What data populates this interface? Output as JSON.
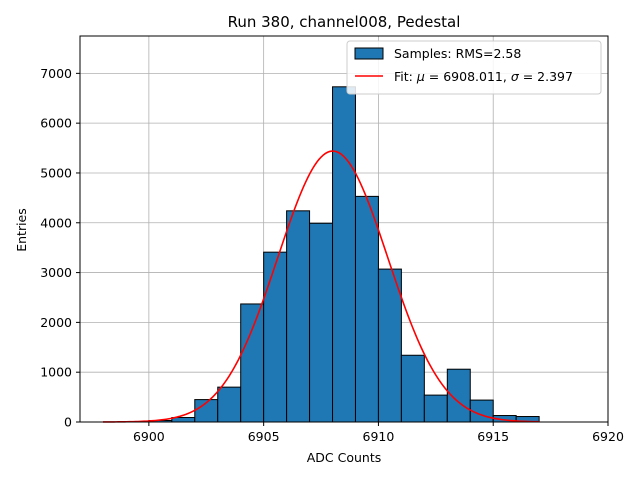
{
  "chart_data": {
    "type": "bar",
    "title": "Run 380, channel008, Pedestal",
    "xlabel": "ADC Counts",
    "ylabel": "Entries",
    "xlim": [
      6897,
      6920
    ],
    "ylim": [
      0,
      7750
    ],
    "xticks": [
      6900,
      6905,
      6910,
      6915,
      6920
    ],
    "yticks": [
      0,
      1000,
      2000,
      3000,
      4000,
      5000,
      6000,
      7000
    ],
    "grid": true,
    "legend_position": "top-right",
    "histogram": {
      "name": "Samples: RMS=2.58",
      "color": "#1f77b4",
      "edge_color": "#000000",
      "bin_edges": [
        6900,
        6901,
        6902,
        6903,
        6904,
        6905,
        6906,
        6907,
        6908,
        6909,
        6910,
        6911,
        6912,
        6913,
        6914,
        6915,
        6916,
        6917
      ],
      "counts": [
        30,
        90,
        450,
        700,
        2370,
        3410,
        4240,
        3990,
        6730,
        4530,
        3070,
        1340,
        540,
        1060,
        440,
        130,
        110
      ]
    },
    "fit": {
      "name": "Fit: μ = 6908.011, σ = 2.397",
      "name_parts": {
        "prefix": "Fit: ",
        "mu_symbol": "μ",
        "mu_text": " = 6908.011, ",
        "sigma_symbol": "σ",
        "sigma_text": " = 2.397"
      },
      "type": "gaussian",
      "mu": 6908.011,
      "sigma": 2.397,
      "peak": 5440,
      "x_range": [
        6898,
        6917
      ],
      "color": "#ff0000"
    }
  }
}
